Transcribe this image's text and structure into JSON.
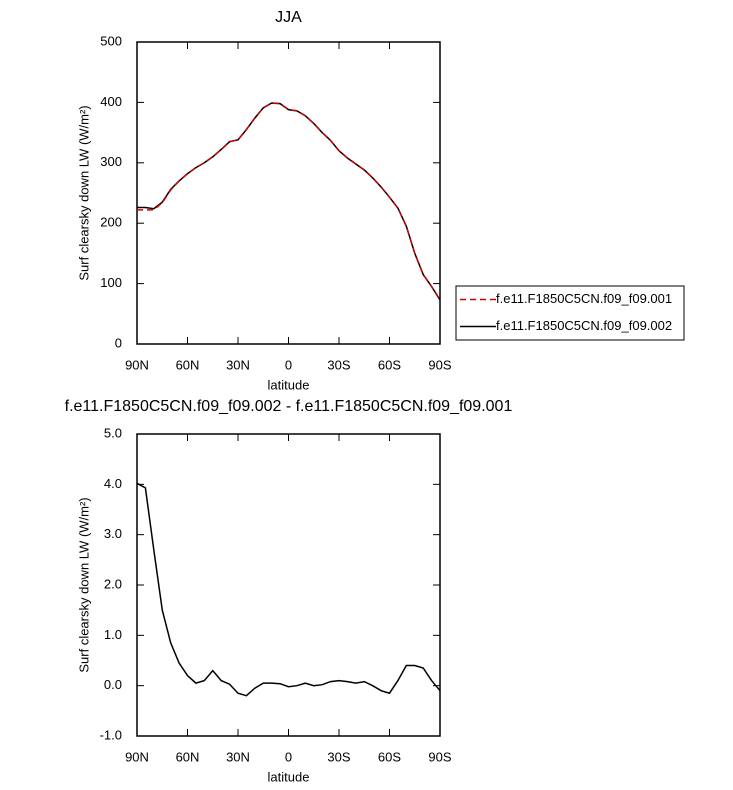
{
  "chart_data": [
    {
      "type": "line",
      "title": "JJA",
      "xlabel": "latitude",
      "ylabel": "Surf clearsky down LW (W/m²)",
      "x": [
        90,
        85,
        80,
        75,
        70,
        65,
        60,
        55,
        50,
        45,
        40,
        35,
        30,
        25,
        20,
        15,
        10,
        5,
        0,
        -5,
        -10,
        -15,
        -20,
        -25,
        -30,
        -35,
        -40,
        -45,
        -50,
        -55,
        -60,
        -65,
        -70,
        -75,
        -80,
        -85,
        -90
      ],
      "xlim": [
        90,
        -90
      ],
      "xticks": [
        {
          "value": 90,
          "label": "90N"
        },
        {
          "value": 60,
          "label": "60N"
        },
        {
          "value": 30,
          "label": "30N"
        },
        0,
        {
          "value": -30,
          "label": "30S"
        },
        {
          "value": -60,
          "label": "60S"
        },
        {
          "value": -90,
          "label": "90S"
        }
      ],
      "ylim": [
        0,
        500
      ],
      "yticks": [
        0,
        100,
        200,
        300,
        400,
        500
      ],
      "legend": "right",
      "series": [
        {
          "name": "f.e11.F1850C5CN.f09_f09.001",
          "color": "#cc0000",
          "dashed": true,
          "values": [
            222,
            222,
            222,
            234,
            255,
            270,
            282,
            292,
            300,
            310,
            322,
            335,
            338,
            355,
            374,
            391,
            399,
            398,
            388,
            386,
            378,
            365,
            350,
            337,
            320,
            308,
            298,
            288,
            275,
            260,
            243,
            225,
            195,
            150,
            115,
            95,
            73
          ]
        },
        {
          "name": "f.e11.F1850C5CN.f09_f09.002",
          "color": "#000000",
          "dashed": false,
          "values": [
            226,
            226,
            224,
            235,
            256,
            270,
            282,
            292,
            300,
            310,
            322,
            335,
            338,
            355,
            374,
            391,
            399,
            398,
            388,
            386,
            378,
            365,
            350,
            337,
            320,
            308,
            298,
            288,
            275,
            260,
            243,
            225,
            195,
            150,
            115,
            95,
            73
          ]
        }
      ]
    },
    {
      "type": "line",
      "title": "f.e11.F1850C5CN.f09_f09.002 - f.e11.F1850C5CN.f09_f09.001",
      "xlabel": "latitude",
      "ylabel": "Surf clearsky down LW (W/m²)",
      "x": [
        90,
        85,
        80,
        75,
        70,
        65,
        60,
        55,
        50,
        45,
        40,
        35,
        30,
        25,
        20,
        15,
        10,
        5,
        0,
        -5,
        -10,
        -15,
        -20,
        -25,
        -30,
        -35,
        -40,
        -45,
        -50,
        -55,
        -60,
        -65,
        -70,
        -75,
        -80,
        -85,
        -90
      ],
      "xlim": [
        90,
        -90
      ],
      "xticks": [
        {
          "value": 90,
          "label": "90N"
        },
        {
          "value": 60,
          "label": "60N"
        },
        {
          "value": 30,
          "label": "30N"
        },
        0,
        {
          "value": -30,
          "label": "30S"
        },
        {
          "value": -60,
          "label": "60S"
        },
        {
          "value": -90,
          "label": "90S"
        }
      ],
      "ylim": [
        -1,
        5
      ],
      "yticks": [
        {
          "value": -1,
          "label": "-1.0"
        },
        {
          "value": 0,
          "label": "0.0"
        },
        {
          "value": 1,
          "label": "1.0"
        },
        {
          "value": 2,
          "label": "2.0"
        },
        {
          "value": 3,
          "label": "3.0"
        },
        {
          "value": 4,
          "label": "4.0"
        },
        {
          "value": 5,
          "label": "5.0"
        }
      ],
      "color": "#000000",
      "values": [
        4.02,
        3.93,
        2.7,
        1.5,
        0.85,
        0.45,
        0.2,
        0.05,
        0.1,
        0.3,
        0.1,
        0.03,
        -0.15,
        -0.2,
        -0.05,
        0.05,
        0.05,
        0.04,
        -0.02,
        0.0,
        0.05,
        0.0,
        0.02,
        0.08,
        0.1,
        0.08,
        0.05,
        0.08,
        0.0,
        -0.1,
        -0.15,
        0.1,
        0.4,
        0.4,
        0.35,
        0.1,
        -0.1
      ]
    }
  ]
}
